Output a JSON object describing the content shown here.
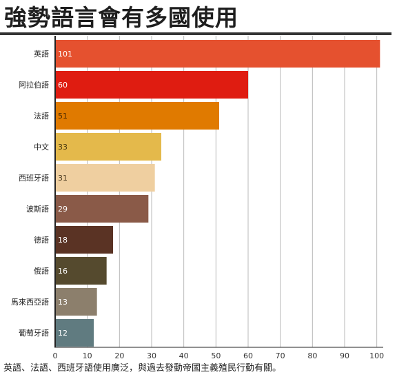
{
  "title": "強勢語言會有多國使用",
  "caption": "英語、法語、西班牙語使用廣泛，與過去發動帝國主義殖民行動有關。",
  "chart_data": {
    "type": "bar",
    "orientation": "horizontal",
    "categories": [
      "英語",
      "阿拉伯語",
      "法語",
      "中文",
      "西班牙語",
      "波斯語",
      "德語",
      "俄語",
      "馬來西亞語",
      "葡萄牙語"
    ],
    "values": [
      101,
      60,
      51,
      33,
      31,
      29,
      18,
      16,
      13,
      12
    ],
    "colors": [
      "#e5512f",
      "#df1c11",
      "#e07a00",
      "#e4b94b",
      "#efcfa0",
      "#8a5a48",
      "#5a3324",
      "#554a2e",
      "#8c7f6c",
      "#607b80"
    ],
    "label_colors": [
      "#ffffff",
      "#ffffff",
      "#4a2a00",
      "#4a3a10",
      "#4a3a20",
      "#ffffff",
      "#ffffff",
      "#ffffff",
      "#ffffff",
      "#ffffff"
    ],
    "x_ticks": [
      0,
      10,
      20,
      30,
      40,
      50,
      60,
      70,
      80,
      90,
      100
    ],
    "xlim": [
      0,
      102
    ],
    "grid": true,
    "legend": "none"
  }
}
